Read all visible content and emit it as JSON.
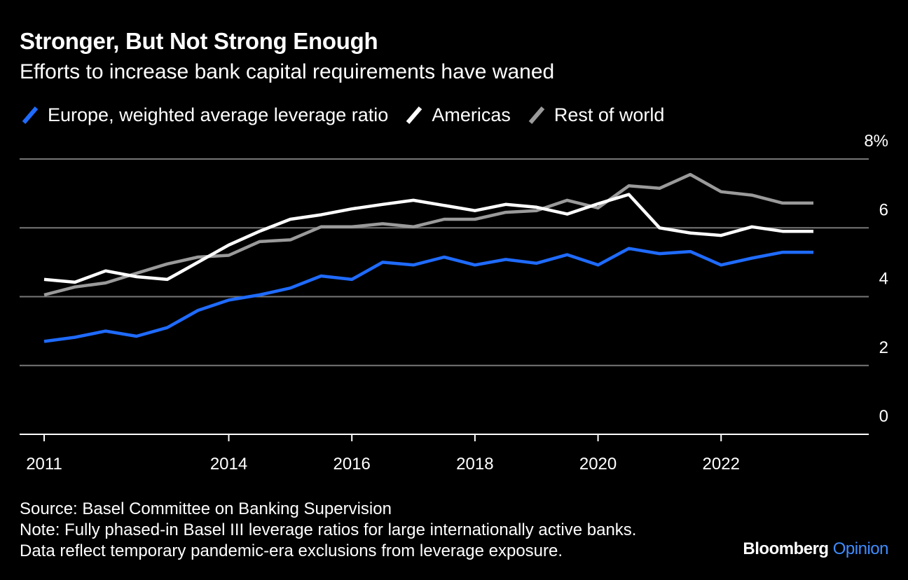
{
  "title": "Stronger, But Not Strong Enough",
  "subtitle": "Efforts to increase bank capital requirements have waned",
  "legend": [
    {
      "label": "Europe, weighted average leverage ratio",
      "color": "#1f6bff"
    },
    {
      "label": "Americas",
      "color": "#ffffff"
    },
    {
      "label": "Rest of world",
      "color": "#9a9a9a"
    }
  ],
  "source": "Source: Basel Committee on Banking Supervision",
  "note_line1": "Note: Fully phased-in Basel III leverage ratios for large internationally active banks.",
  "note_line2": "Data reflect temporary pandemic-era exclusions from leverage exposure.",
  "brand": {
    "name": "Bloomberg",
    "suffix": "Opinion"
  },
  "chart_data": {
    "type": "line",
    "x": [
      2011.0,
      2011.5,
      2012.0,
      2012.5,
      2013.0,
      2013.5,
      2014.0,
      2014.5,
      2015.0,
      2015.5,
      2016.0,
      2016.5,
      2017.0,
      2017.5,
      2018.0,
      2018.5,
      2019.0,
      2019.5,
      2020.0,
      2020.5,
      2021.0,
      2021.5,
      2022.0,
      2022.5,
      2023.0,
      2023.5
    ],
    "series": [
      {
        "name": "Europe, weighted average leverage ratio",
        "color": "#1f6bff",
        "values": [
          2.7,
          2.82,
          3.0,
          2.85,
          3.1,
          3.6,
          3.9,
          4.05,
          4.25,
          4.6,
          4.5,
          5.0,
          4.92,
          5.15,
          4.92,
          5.08,
          4.97,
          5.22,
          4.92,
          5.4,
          5.25,
          5.31,
          4.92,
          5.12,
          5.29,
          5.29
        ],
        "plot_x": [
          2011.0,
          2011.5,
          2012.0,
          2012.5,
          2013.0,
          2013.5,
          2014.0,
          2014.5,
          2015.0,
          2015.5,
          2016.0,
          2016.5,
          2017.0,
          2017.5,
          2018.0,
          2018.5,
          2019.0,
          2019.5,
          2020.0,
          2020.5,
          2021.0,
          2021.5,
          2022.0,
          2022.5,
          2023.0,
          2023.5
        ]
      },
      {
        "name": "Americas",
        "color": "#ffffff",
        "values": [
          4.5,
          4.42,
          4.75,
          4.58,
          4.5,
          5.0,
          5.5,
          5.9,
          6.25,
          6.38,
          6.55,
          6.68,
          6.8,
          6.65,
          6.5,
          6.68,
          6.6,
          6.4,
          6.7,
          6.97,
          6.0,
          5.85,
          5.78,
          6.03,
          5.9,
          5.9
        ],
        "plot_x": [
          2011.0,
          2011.5,
          2012.0,
          2012.5,
          2013.0,
          2013.5,
          2014.0,
          2014.5,
          2015.0,
          2015.5,
          2016.0,
          2016.5,
          2017.0,
          2017.5,
          2018.0,
          2018.5,
          2019.0,
          2019.5,
          2020.0,
          2020.5,
          2021.0,
          2021.5,
          2022.0,
          2022.5,
          2023.0,
          2023.5
        ]
      },
      {
        "name": "Rest of world",
        "color": "#9a9a9a",
        "values": [
          4.05,
          4.28,
          4.4,
          4.68,
          4.95,
          5.15,
          5.2,
          5.6,
          5.65,
          6.03,
          6.03,
          6.12,
          6.03,
          6.25,
          6.25,
          6.45,
          6.5,
          6.8,
          6.58,
          7.22,
          7.15,
          7.55,
          7.05,
          6.95,
          6.72,
          6.72
        ],
        "plot_x": [
          2011.0,
          2011.5,
          2012.0,
          2012.5,
          2013.0,
          2013.5,
          2014.0,
          2014.5,
          2015.0,
          2015.5,
          2016.0,
          2016.5,
          2017.0,
          2017.5,
          2018.0,
          2018.5,
          2019.0,
          2019.5,
          2020.0,
          2020.5,
          2021.0,
          2021.5,
          2022.0,
          2022.5,
          2023.0,
          2023.5
        ]
      }
    ],
    "x_ticks": [
      "2011",
      "2014",
      "2016",
      "2018",
      "2020",
      "2022"
    ],
    "y_ticks": [
      "0",
      "2",
      "4",
      "6",
      "8%"
    ],
    "y_tick_values": [
      0,
      2,
      4,
      6,
      8
    ],
    "ylim": [
      0,
      8
    ],
    "grid": true,
    "y_axis_side": "right",
    "legend_position": "top-left"
  }
}
